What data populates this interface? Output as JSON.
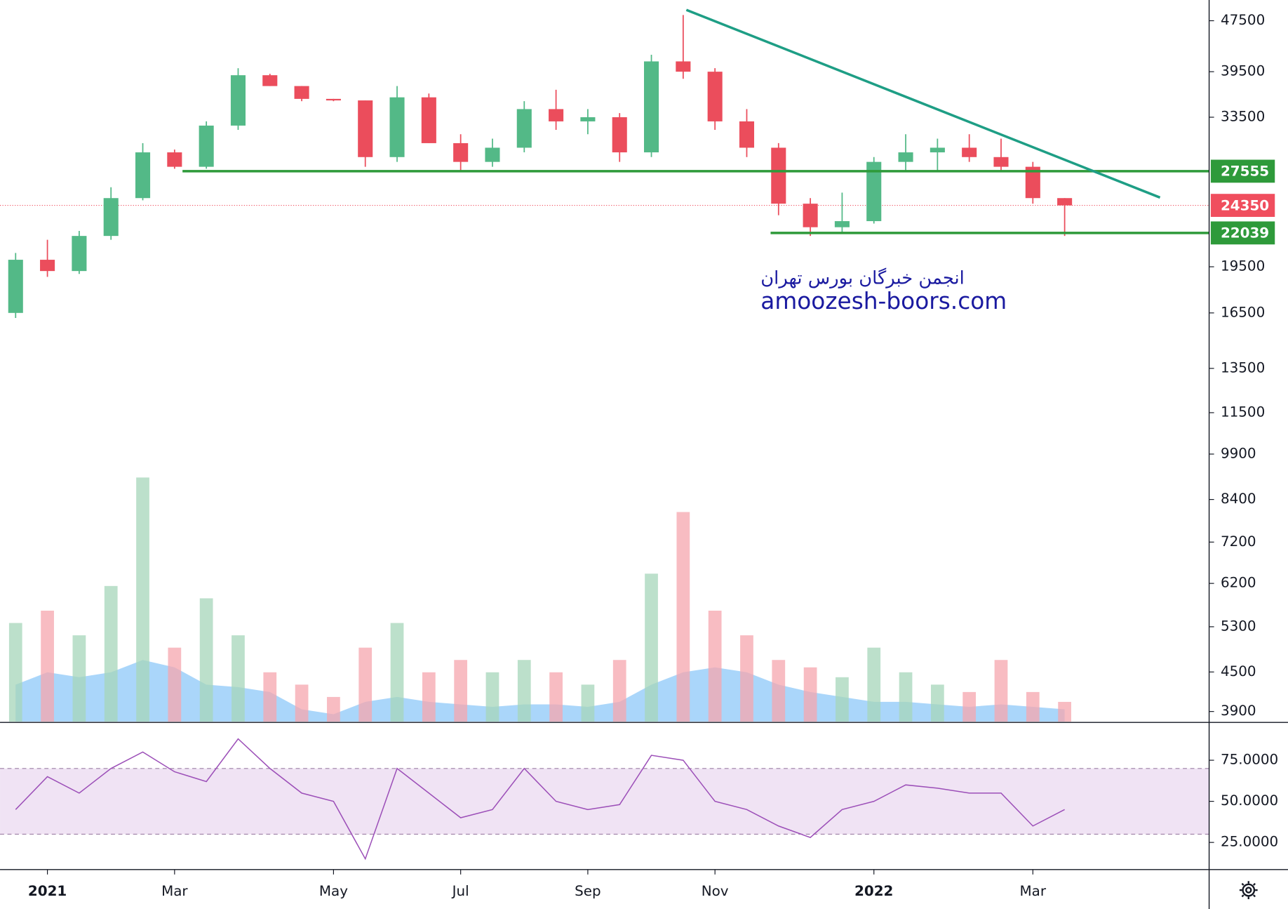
{
  "chart_data": [
    {
      "type": "candlestick",
      "categories": [
        null,
        "2021",
        null,
        null,
        null,
        "Mar",
        null,
        null,
        null,
        null,
        "May",
        null,
        null,
        null,
        "Jul",
        null,
        null,
        null,
        "Sep",
        null,
        null,
        null,
        "Nov",
        null,
        null,
        null,
        null,
        "2022",
        null,
        null,
        null,
        null,
        "Mar",
        null
      ],
      "open": [
        16500,
        20000,
        19200,
        21800,
        25000,
        29500,
        28000,
        32500,
        39000,
        37500,
        35800,
        35600,
        29000,
        36000,
        30500,
        28500,
        30000,
        34500,
        33000,
        33500,
        29500,
        41000,
        39500,
        33000,
        30000,
        24500,
        22500,
        23000,
        28500,
        29500,
        30000,
        29000,
        28000,
        25000
      ],
      "high": [
        20500,
        21500,
        22200,
        26000,
        30500,
        29800,
        33000,
        40000,
        39200,
        37500,
        35800,
        35600,
        37500,
        36500,
        31500,
        31000,
        35500,
        37000,
        34500,
        34000,
        42000,
        48500,
        40000,
        34500,
        30500,
        25000,
        25500,
        29000,
        31500,
        31000,
        31500,
        31000,
        28500,
        25000
      ],
      "low": [
        16200,
        18800,
        19000,
        21500,
        24800,
        27800,
        27800,
        32000,
        37500,
        35500,
        35500,
        28000,
        28500,
        30500,
        27500,
        28000,
        29500,
        32000,
        31500,
        28500,
        29000,
        38500,
        32000,
        29000,
        23500,
        21800,
        22000,
        22800,
        27500,
        27500,
        28500,
        27500,
        24500,
        21800
      ],
      "close": [
        20000,
        19200,
        21800,
        25000,
        29500,
        28000,
        32500,
        39000,
        37500,
        35800,
        35600,
        29000,
        36000,
        30500,
        28500,
        30000,
        34500,
        33000,
        33500,
        29500,
        41000,
        39500,
        33000,
        30000,
        24500,
        22500,
        23000,
        28500,
        29500,
        30000,
        29000,
        28000,
        25000,
        24350
      ],
      "up_color": "#53b987",
      "down_color": "#eb4d5c",
      "log_scale": true,
      "ylim": [
        3760,
        51200
      ],
      "yticks": [
        47500,
        39500,
        33500,
        19500,
        16500,
        13500,
        11500,
        9900,
        8400,
        7200,
        6200,
        5300,
        4500,
        3900
      ],
      "levels": [
        {
          "value": 27555,
          "from": 5.25,
          "color": "#2e9a3a"
        },
        {
          "value": 22039,
          "from": 23.75,
          "color": "#2e9a3a"
        }
      ],
      "last_price": {
        "value": 24350,
        "color": "#f04e5e"
      },
      "trendline": {
        "x": [
          21.1,
          36
        ],
        "y": [
          49400,
          25050
        ],
        "color": "#1e9e85"
      },
      "watermark": [
        "انجمن خبرگان بورس تهران",
        "amoozesh-boors.com"
      ]
    },
    {
      "type": "bar",
      "values": [
        40,
        45,
        35,
        55,
        99,
        30,
        50,
        35,
        20,
        15,
        10,
        30,
        40,
        20,
        25,
        20,
        25,
        20,
        15,
        25,
        60,
        85,
        45,
        35,
        25,
        22,
        18,
        30,
        20,
        15,
        12,
        25,
        12,
        8
      ],
      "ma": [
        15,
        20,
        18,
        20,
        25,
        22,
        15,
        14,
        12,
        5,
        3,
        8,
        10,
        8,
        7,
        6,
        7,
        7,
        6,
        8,
        15,
        20,
        22,
        20,
        15,
        12,
        10,
        8,
        8,
        7,
        6,
        7,
        6,
        5
      ],
      "up_color": "#a5d6b9",
      "down_color": "#f5a5ad",
      "ma_color": "#64b5f6",
      "ylim": [
        0,
        100
      ]
    },
    {
      "type": "line",
      "values": [
        45,
        65,
        55,
        70,
        80,
        68,
        62,
        88,
        70,
        55,
        50,
        15,
        70,
        55,
        40,
        45,
        70,
        50,
        45,
        48,
        78,
        75,
        50,
        45,
        35,
        28,
        45,
        50,
        60,
        58,
        55,
        55,
        35,
        45
      ],
      "color": "#9c4fb8",
      "ylim": [
        8.5,
        97.5
      ],
      "yticks": [
        {
          "value": 75,
          "label": "75.0000"
        },
        {
          "value": 50,
          "label": "50.0000"
        },
        {
          "value": 25,
          "label": "25.0000"
        }
      ],
      "band": [
        30,
        70
      ]
    }
  ]
}
